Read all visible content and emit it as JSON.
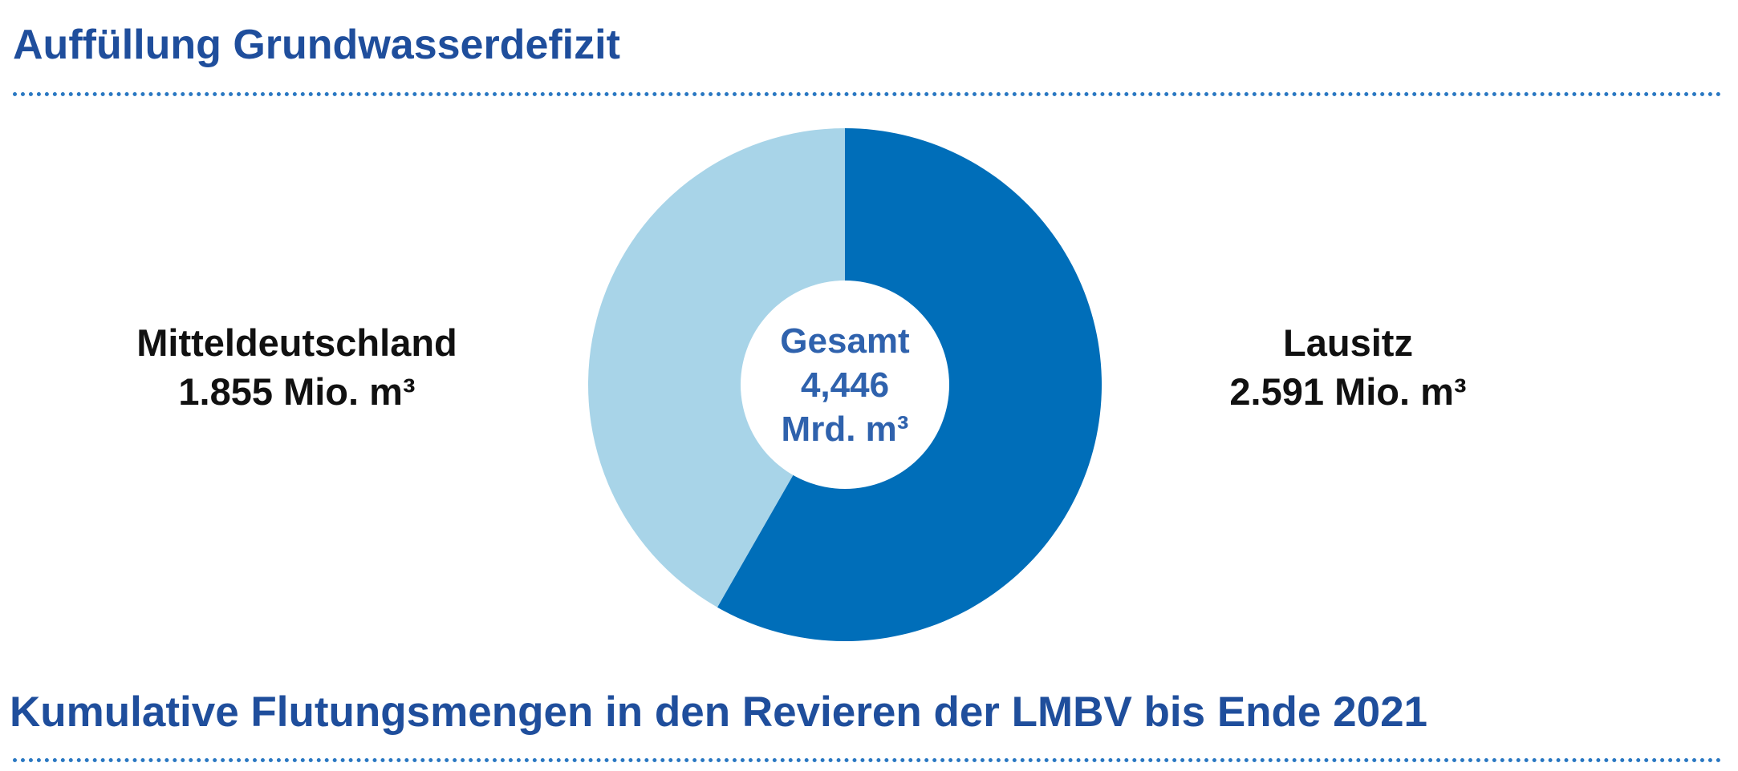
{
  "title": "Auffüllung Grundwasserdefizit",
  "bottom_title": "Kumulative Flutungsmengen in den Revieren der LMBV bis Ende 2021",
  "colors": {
    "heading": "#1f4e9c",
    "lausitz": "#006eb9",
    "mitteldeutschland": "#a8d4e8",
    "center_text": "#2f62ad",
    "divider": "#2a78c2"
  },
  "chart_data": {
    "type": "pie",
    "donut": true,
    "center_label": {
      "line1": "Gesamt",
      "line2": "4,446",
      "line3": "Mrd. m³"
    },
    "slices": [
      {
        "name": "Lausitz",
        "value": 2591,
        "value_label": "2.591 Mio. m³",
        "color": "#006eb9"
      },
      {
        "name": "Mitteldeutschland",
        "value": 1855,
        "value_label": "1.855 Mio. m³",
        "color": "#a8d4e8"
      }
    ],
    "unit": "Mio. m³"
  }
}
